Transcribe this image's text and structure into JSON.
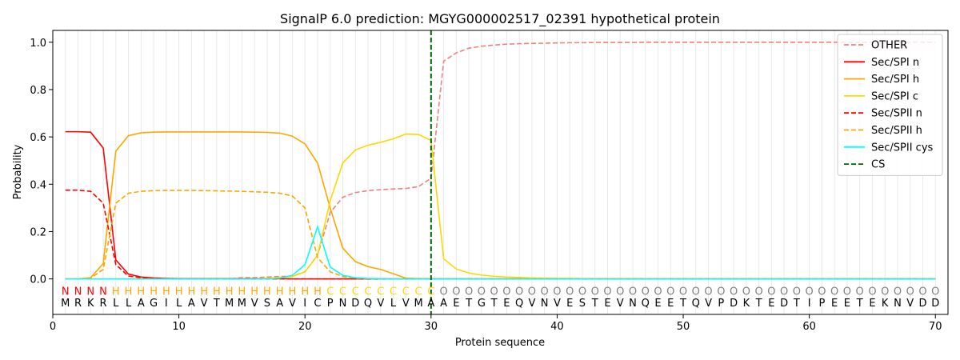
{
  "chart_data": {
    "type": "line",
    "title": "SignalP 6.0 prediction: MGYG000002517_02391 hypothetical protein",
    "xlabel": "Protein sequence",
    "ylabel": "Probability",
    "xlim": [
      0,
      71
    ],
    "ylim": [
      -0.15,
      1.05
    ],
    "xticks": [
      0,
      10,
      20,
      30,
      40,
      50,
      60,
      70
    ],
    "yticks": [
      0.0,
      0.2,
      0.4,
      0.6,
      0.8,
      1.0
    ],
    "ytick_labels": [
      "0.0",
      "0.2",
      "0.4",
      "0.6",
      "0.8",
      "1.0"
    ],
    "grid": "vertical lines at each residue",
    "legend_position": "top-right",
    "sequence": [
      "M",
      "R",
      "K",
      "R",
      "L",
      "L",
      "A",
      "G",
      "I",
      "L",
      "A",
      "V",
      "T",
      "M",
      "M",
      "V",
      "S",
      "A",
      "V",
      "I",
      "C",
      "P",
      "N",
      "D",
      "Q",
      "V",
      "L",
      "V",
      "M",
      "A",
      "A",
      "E",
      "T",
      "G",
      "T",
      "E",
      "Q",
      "V",
      "N",
      "V",
      "E",
      "S",
      "T",
      "E",
      "V",
      "N",
      "Q",
      "E",
      "E",
      "T",
      "Q",
      "V",
      "P",
      "D",
      "K",
      "T",
      "E",
      "D",
      "T",
      "I",
      "P",
      "E",
      "E",
      "T",
      "E",
      "K",
      "N",
      "V",
      "D",
      "D"
    ],
    "labels": [
      "N",
      "N",
      "N",
      "N",
      "H",
      "H",
      "H",
      "H",
      "H",
      "H",
      "H",
      "H",
      "H",
      "H",
      "H",
      "H",
      "H",
      "H",
      "H",
      "H",
      "H",
      "C",
      "C",
      "C",
      "C",
      "C",
      "C",
      "C",
      "C",
      "C",
      "O",
      "O",
      "O",
      "O",
      "O",
      "O",
      "O",
      "O",
      "O",
      "O",
      "O",
      "O",
      "O",
      "O",
      "O",
      "O",
      "O",
      "O",
      "O",
      "O",
      "O",
      "O",
      "O",
      "O",
      "O",
      "O",
      "O",
      "O",
      "O",
      "O",
      "O",
      "O",
      "O",
      "O",
      "O",
      "O",
      "O",
      "O",
      "O",
      "O"
    ],
    "label_colors": {
      "N": "#ff0000",
      "H": "#ffa500",
      "C": "#ffd700",
      "O": "#808080"
    },
    "cs_position": 30,
    "series": [
      {
        "name": "OTHER",
        "color": "#f08080",
        "dash": "dashed",
        "values": [
          0.0,
          0.0,
          0.0,
          0.0,
          0.0,
          0.0,
          0.0,
          0.0,
          0.0,
          0.0,
          0.0,
          0.0,
          0.0,
          0.0,
          0.005,
          0.005,
          0.008,
          0.01,
          0.012,
          0.03,
          0.1,
          0.28,
          0.345,
          0.365,
          0.373,
          0.377,
          0.38,
          0.382,
          0.39,
          0.425,
          0.92,
          0.955,
          0.975,
          0.983,
          0.988,
          0.992,
          0.994,
          0.995,
          0.996,
          0.997,
          0.998,
          0.998,
          0.999,
          0.999,
          0.999,
          0.999,
          1.0,
          1.0,
          1.0,
          1.0,
          1.0,
          1.0,
          1.0,
          1.0,
          1.0,
          1.0,
          1.0,
          1.0,
          1.0,
          1.0,
          1.0,
          1.0,
          1.0,
          1.0,
          1.0,
          1.0,
          1.0,
          1.0,
          1.0,
          1.0
        ]
      },
      {
        "name": "Sec/SPI n",
        "color": "#ff0000",
        "dash": "solid",
        "values": [
          0.622,
          0.622,
          0.62,
          0.553,
          0.08,
          0.02,
          0.008,
          0.004,
          0.002,
          0.001,
          0.001,
          0.001,
          0.001,
          0.001,
          0.001,
          0.001,
          0.001,
          0.001,
          0.0,
          0.0,
          0.0,
          0.0,
          0.0,
          0.0,
          0.0,
          0.0,
          0.0,
          0.0,
          0.0,
          0.0,
          0.0,
          0.0,
          0.0,
          0.0,
          0.0,
          0.0,
          0.0,
          0.0,
          0.0,
          0.0,
          0.0,
          0.0,
          0.0,
          0.0,
          0.0,
          0.0,
          0.0,
          0.0,
          0.0,
          0.0,
          0.0,
          0.0,
          0.0,
          0.0,
          0.0,
          0.0,
          0.0,
          0.0,
          0.0,
          0.0,
          0.0,
          0.0,
          0.0,
          0.0,
          0.0,
          0.0,
          0.0,
          0.0,
          0.0,
          0.0
        ]
      },
      {
        "name": "Sec/SPI h",
        "color": "#ffa500",
        "dash": "solid",
        "values": [
          0.0,
          0.0,
          0.005,
          0.065,
          0.54,
          0.605,
          0.617,
          0.62,
          0.621,
          0.621,
          0.621,
          0.621,
          0.621,
          0.621,
          0.621,
          0.62,
          0.619,
          0.616,
          0.603,
          0.57,
          0.49,
          0.3,
          0.13,
          0.073,
          0.052,
          0.04,
          0.022,
          0.003,
          0.001,
          0.0,
          0.0,
          0.0,
          0.0,
          0.0,
          0.0,
          0.0,
          0.0,
          0.0,
          0.0,
          0.0,
          0.0,
          0.0,
          0.0,
          0.0,
          0.0,
          0.0,
          0.0,
          0.0,
          0.0,
          0.0,
          0.0,
          0.0,
          0.0,
          0.0,
          0.0,
          0.0,
          0.0,
          0.0,
          0.0,
          0.0,
          0.0,
          0.0,
          0.0,
          0.0,
          0.0,
          0.0,
          0.0,
          0.0,
          0.0,
          0.0
        ]
      },
      {
        "name": "Sec/SPI c",
        "color": "#ffd700",
        "dash": "solid",
        "values": [
          0.0,
          0.0,
          0.0,
          0.0,
          0.0,
          0.0,
          0.0,
          0.0,
          0.0,
          0.0,
          0.0,
          0.0,
          0.0,
          0.0,
          0.0,
          0.0,
          0.003,
          0.006,
          0.01,
          0.03,
          0.1,
          0.33,
          0.49,
          0.545,
          0.565,
          0.577,
          0.592,
          0.612,
          0.61,
          0.585,
          0.085,
          0.042,
          0.025,
          0.016,
          0.011,
          0.008,
          0.006,
          0.004,
          0.003,
          0.002,
          0.002,
          0.001,
          0.001,
          0.001,
          0.001,
          0.001,
          0.0,
          0.0,
          0.0,
          0.0,
          0.0,
          0.0,
          0.0,
          0.0,
          0.0,
          0.0,
          0.0,
          0.0,
          0.0,
          0.0,
          0.0,
          0.0,
          0.0,
          0.0,
          0.0,
          0.0,
          0.0,
          0.0,
          0.0,
          0.0
        ]
      },
      {
        "name": "Sec/SPII n",
        "color": "#ff0000",
        "dash": "dashed",
        "values": [
          0.375,
          0.375,
          0.37,
          0.32,
          0.06,
          0.012,
          0.005,
          0.002,
          0.001,
          0.0,
          0.0,
          0.0,
          0.0,
          0.0,
          0.0,
          0.0,
          0.0,
          0.0,
          0.0,
          0.0,
          0.0,
          0.0,
          0.0,
          0.0,
          0.0,
          0.0,
          0.0,
          0.0,
          0.0,
          0.0,
          0.0,
          0.0,
          0.0,
          0.0,
          0.0,
          0.0,
          0.0,
          0.0,
          0.0,
          0.0,
          0.0,
          0.0,
          0.0,
          0.0,
          0.0,
          0.0,
          0.0,
          0.0,
          0.0,
          0.0,
          0.0,
          0.0,
          0.0,
          0.0,
          0.0,
          0.0,
          0.0,
          0.0,
          0.0,
          0.0,
          0.0,
          0.0,
          0.0,
          0.0,
          0.0,
          0.0,
          0.0,
          0.0,
          0.0,
          0.0
        ]
      },
      {
        "name": "Sec/SPII h",
        "color": "#ffa500",
        "dash": "dashed",
        "values": [
          0.0,
          0.0,
          0.003,
          0.04,
          0.32,
          0.362,
          0.37,
          0.373,
          0.374,
          0.374,
          0.374,
          0.373,
          0.372,
          0.371,
          0.37,
          0.368,
          0.366,
          0.362,
          0.35,
          0.3,
          0.09,
          0.03,
          0.01,
          0.003,
          0.001,
          0.0,
          0.0,
          0.0,
          0.0,
          0.0,
          0.0,
          0.0,
          0.0,
          0.0,
          0.0,
          0.0,
          0.0,
          0.0,
          0.0,
          0.0,
          0.0,
          0.0,
          0.0,
          0.0,
          0.0,
          0.0,
          0.0,
          0.0,
          0.0,
          0.0,
          0.0,
          0.0,
          0.0,
          0.0,
          0.0,
          0.0,
          0.0,
          0.0,
          0.0,
          0.0,
          0.0,
          0.0,
          0.0,
          0.0,
          0.0,
          0.0,
          0.0,
          0.0,
          0.0,
          0.0
        ]
      },
      {
        "name": "Sec/SPII cys",
        "color": "#00ffff",
        "dash": "solid",
        "values": [
          0.0,
          0.0,
          0.0,
          0.0,
          0.0,
          0.0,
          0.0,
          0.0,
          0.0,
          0.0,
          0.0,
          0.0,
          0.0,
          0.0,
          0.0,
          0.0,
          0.0,
          0.003,
          0.015,
          0.06,
          0.22,
          0.05,
          0.015,
          0.005,
          0.002,
          0.001,
          0.0,
          0.0,
          0.0,
          0.0,
          0.0,
          0.0,
          0.0,
          0.0,
          0.0,
          0.0,
          0.0,
          0.0,
          0.0,
          0.0,
          0.0,
          0.0,
          0.0,
          0.0,
          0.0,
          0.0,
          0.0,
          0.0,
          0.0,
          0.0,
          0.0,
          0.0,
          0.0,
          0.0,
          0.0,
          0.0,
          0.0,
          0.0,
          0.0,
          0.0,
          0.0,
          0.0,
          0.0,
          0.0,
          0.0,
          0.0,
          0.0,
          0.0,
          0.0,
          0.0
        ]
      }
    ],
    "cs_marker": {
      "name": "CS",
      "color": "#006400",
      "dash": "dashed"
    }
  }
}
